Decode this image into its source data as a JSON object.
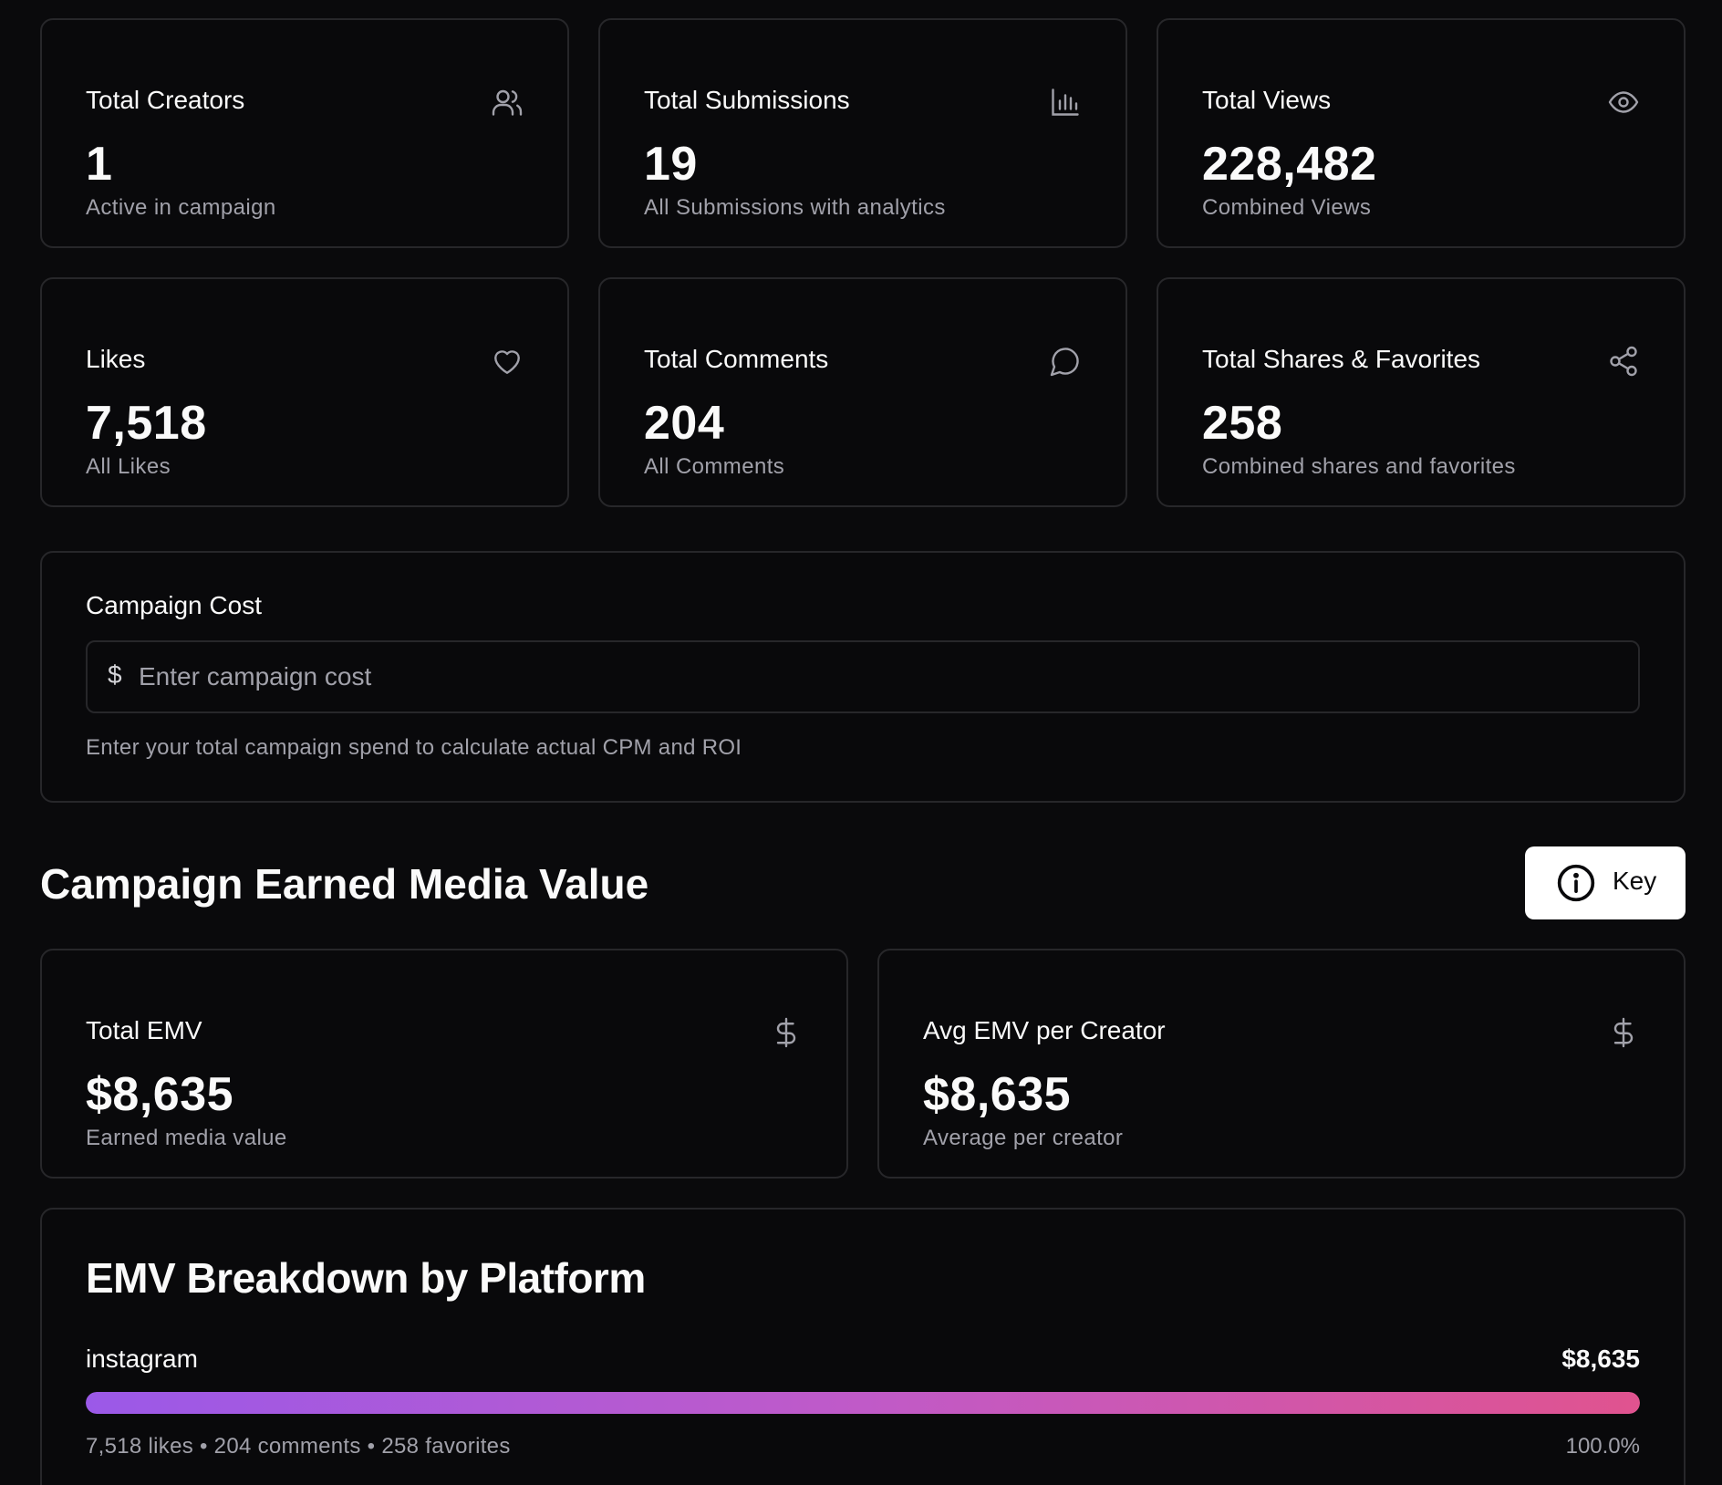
{
  "stats": [
    {
      "label": "Total Creators",
      "value": "1",
      "sub": "Active in campaign",
      "icon": "users-icon"
    },
    {
      "label": "Total Submissions",
      "value": "19",
      "sub": "All Submissions with analytics",
      "icon": "bar-chart-icon"
    },
    {
      "label": "Total Views",
      "value": "228,482",
      "sub": "Combined Views",
      "icon": "eye-icon"
    },
    {
      "label": "Likes",
      "value": "7,518",
      "sub": "All Likes",
      "icon": "heart-icon"
    },
    {
      "label": "Total Comments",
      "value": "204",
      "sub": "All Comments",
      "icon": "comment-icon"
    },
    {
      "label": "Total Shares & Favorites",
      "value": "258",
      "sub": "Combined shares and favorites",
      "icon": "share-icon"
    }
  ],
  "campaign_cost": {
    "title": "Campaign Cost",
    "currency_symbol": "$",
    "placeholder": "Enter campaign cost",
    "value": "",
    "help": "Enter your total campaign spend to calculate actual CPM and ROI"
  },
  "emv_section": {
    "title": "Campaign Earned Media Value",
    "key_button_label": "Key",
    "cards": [
      {
        "label": "Total EMV",
        "value": "$8,635",
        "sub": "Earned media value",
        "icon": "dollar-icon"
      },
      {
        "label": "Avg EMV per Creator",
        "value": "$8,635",
        "sub": "Average per creator",
        "icon": "dollar-icon"
      }
    ]
  },
  "breakdown": {
    "title": "EMV Breakdown by Platform",
    "platforms": [
      {
        "name": "instagram",
        "value": "$8,635",
        "stats": "7,518 likes • 204 comments • 258 favorites",
        "percent_label": "100.0%",
        "percent": 100
      }
    ]
  },
  "colors": {
    "background": "#0a0a0c",
    "card_border": "#27272a",
    "muted_text": "#a1a1aa",
    "bar_gradient_start": "#9b59e8",
    "bar_gradient_end": "#e0538f"
  }
}
